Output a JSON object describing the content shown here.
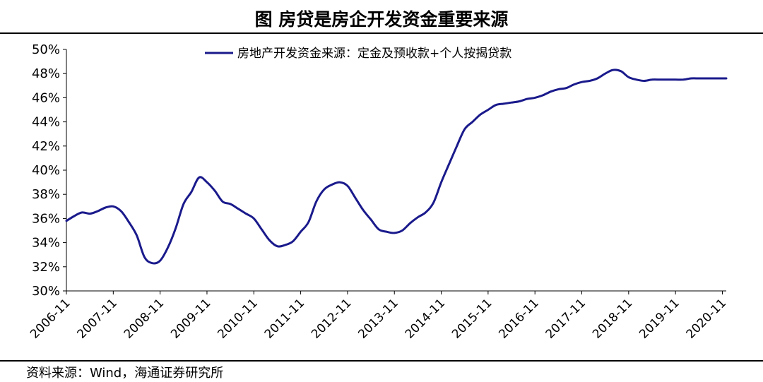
{
  "header": {
    "title": "图  房贷是房企开发资金重要来源"
  },
  "footer": {
    "source": "资料来源：Wind，海通证券研究所"
  },
  "chart_data": {
    "type": "line",
    "title": "图  房贷是房企开发资金重要来源",
    "xlabel": "",
    "ylabel": "",
    "ylim": [
      0.3,
      0.5
    ],
    "y_ticks": [
      "30%",
      "32%",
      "34%",
      "36%",
      "38%",
      "40%",
      "42%",
      "44%",
      "46%",
      "48%",
      "50%"
    ],
    "x_tick_labels": [
      "2006-11",
      "2007-11",
      "2008-11",
      "2009-11",
      "2010-11",
      "2011-11",
      "2012-11",
      "2013-11",
      "2014-11",
      "2015-11",
      "2016-11",
      "2017-11",
      "2018-11",
      "2019-11",
      "2020-11"
    ],
    "legend": "top",
    "grid": false,
    "color": "#1a1a8c",
    "series": [
      {
        "name": "房地产开发资金来源：定金及预收款+个人按揭贷款",
        "x": [
          "2006-11",
          "2007-01",
          "2007-03",
          "2007-05",
          "2007-07",
          "2007-09",
          "2007-11",
          "2008-01",
          "2008-03",
          "2008-05",
          "2008-07",
          "2008-09",
          "2008-11",
          "2009-01",
          "2009-03",
          "2009-05",
          "2009-07",
          "2009-09",
          "2009-11",
          "2010-01",
          "2010-03",
          "2010-05",
          "2010-07",
          "2010-09",
          "2010-11",
          "2011-01",
          "2011-03",
          "2011-05",
          "2011-07",
          "2011-09",
          "2011-11",
          "2012-01",
          "2012-03",
          "2012-05",
          "2012-07",
          "2012-09",
          "2012-11",
          "2013-01",
          "2013-03",
          "2013-05",
          "2013-07",
          "2013-09",
          "2013-11",
          "2014-01",
          "2014-03",
          "2014-05",
          "2014-07",
          "2014-09",
          "2014-11",
          "2015-01",
          "2015-03",
          "2015-05",
          "2015-07",
          "2015-09",
          "2015-11",
          "2016-01",
          "2016-03",
          "2016-05",
          "2016-07",
          "2016-09",
          "2016-11",
          "2017-01",
          "2017-03",
          "2017-05",
          "2017-07",
          "2017-09",
          "2017-11",
          "2018-01",
          "2018-03",
          "2018-05",
          "2018-07",
          "2018-09",
          "2018-11",
          "2019-01",
          "2019-03",
          "2019-05",
          "2019-07",
          "2019-09",
          "2019-11",
          "2020-01",
          "2020-03",
          "2020-05",
          "2020-07",
          "2020-09",
          "2020-11",
          "2020-12"
        ],
        "values": [
          0.358,
          0.362,
          0.365,
          0.364,
          0.366,
          0.369,
          0.37,
          0.366,
          0.357,
          0.346,
          0.328,
          0.323,
          0.325,
          0.336,
          0.352,
          0.372,
          0.382,
          0.394,
          0.39,
          0.383,
          0.374,
          0.372,
          0.368,
          0.364,
          0.36,
          0.351,
          0.342,
          0.337,
          0.338,
          0.341,
          0.349,
          0.357,
          0.374,
          0.384,
          0.388,
          0.39,
          0.387,
          0.377,
          0.367,
          0.359,
          0.351,
          0.349,
          0.348,
          0.35,
          0.356,
          0.361,
          0.365,
          0.373,
          0.39,
          0.405,
          0.42,
          0.434,
          0.44,
          0.446,
          0.45,
          0.454,
          0.455,
          0.456,
          0.457,
          0.459,
          0.46,
          0.462,
          0.465,
          0.467,
          0.468,
          0.471,
          0.473,
          0.474,
          0.476,
          0.48,
          0.483,
          0.482,
          0.477,
          0.475,
          0.474,
          0.475,
          0.475,
          0.475,
          0.475,
          0.475,
          0.476,
          0.476,
          0.476,
          0.476,
          0.476,
          0.476
        ]
      }
    ]
  }
}
